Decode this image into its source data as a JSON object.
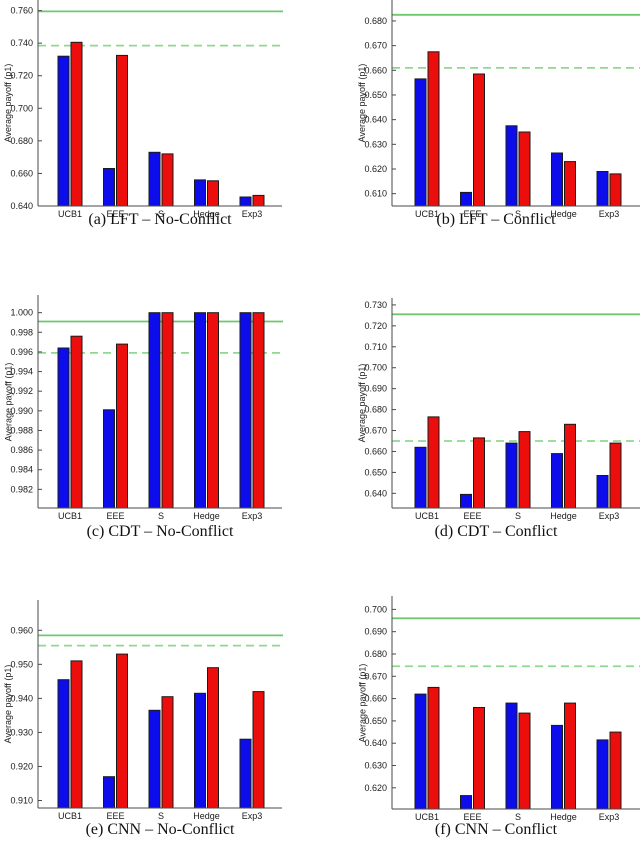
{
  "page": {
    "background": "#ffffff"
  },
  "colors": {
    "bar_blue": "#0d0deb",
    "bar_red": "#ec0d0d",
    "bar_border": "#1a1a1a",
    "ref_solid_green": "#6ec86e",
    "ref_dashed_green": "#8fd98f",
    "axis": "#4a4a4a",
    "text": "#1a1a1a"
  },
  "chart_data": [
    {
      "id": "a",
      "type": "bar",
      "caption": "(a) LFT – No-Conflict",
      "ylabel": "Average payoff (p1)",
      "categories": [
        "UCB1",
        "EEE",
        "S",
        "Hedge",
        "Exp3"
      ],
      "series": [
        {
          "name": "player-blue",
          "color": "#0d0deb",
          "values": [
            0.732,
            0.663,
            0.673,
            0.656,
            0.6455
          ]
        },
        {
          "name": "player-red",
          "color": "#ec0d0d",
          "values": [
            0.7405,
            0.7325,
            0.672,
            0.6555,
            0.6465
          ]
        }
      ],
      "ref_lines": {
        "solid": 0.7595,
        "dashed": 0.7385
      },
      "ylim": [
        0.64,
        0.7665
      ],
      "yticks": [
        0.64,
        0.66,
        0.68,
        0.7,
        0.72,
        0.74,
        0.76
      ],
      "tick_decimals": 3,
      "grid": false,
      "legend": "none"
    },
    {
      "id": "b",
      "type": "bar",
      "caption": "(b) LFT – Conflict",
      "ylabel": "Average payoff (p1)",
      "categories": [
        "UCB1",
        "EEE",
        "S",
        "Hedge",
        "Exp3"
      ],
      "series": [
        {
          "name": "player-blue",
          "color": "#0d0deb",
          "values": [
            0.6565,
            0.6105,
            0.6375,
            0.6265,
            0.619
          ]
        },
        {
          "name": "player-red",
          "color": "#ec0d0d",
          "values": [
            0.6675,
            0.6585,
            0.635,
            0.623,
            0.618
          ]
        }
      ],
      "ref_lines": {
        "solid": 0.6825,
        "dashed": 0.661
      },
      "ylim": [
        0.605,
        0.6885
      ],
      "yticks": [
        0.61,
        0.62,
        0.63,
        0.64,
        0.65,
        0.66,
        0.67,
        0.68
      ],
      "tick_decimals": 3,
      "grid": false,
      "legend": "none"
    },
    {
      "id": "c",
      "type": "bar",
      "caption": "(c) CDT – No-Conflict",
      "ylabel": "Average payoff (p1)",
      "categories": [
        "UCB1",
        "EEE",
        "S",
        "Hedge",
        "Exp3"
      ],
      "series": [
        {
          "name": "player-blue",
          "color": "#0d0deb",
          "values": [
            0.9964,
            0.9901,
            1.0,
            1.0,
            1.0
          ]
        },
        {
          "name": "player-red",
          "color": "#ec0d0d",
          "values": [
            0.9976,
            0.9968,
            1.0,
            1.0,
            1.0
          ]
        }
      ],
      "ref_lines": {
        "solid": 0.9991,
        "dashed": 0.9959
      },
      "ylim": [
        0.9801,
        1.0018
      ],
      "yticks": [
        0.982,
        0.984,
        0.986,
        0.988,
        0.99,
        0.992,
        0.994,
        0.996,
        0.998,
        1.0
      ],
      "tick_decimals": 3,
      "grid": false,
      "legend": "none"
    },
    {
      "id": "d",
      "type": "bar",
      "caption": "(d) CDT – Conflict",
      "ylabel": "Average payoff (p1)",
      "categories": [
        "UCB1",
        "EEE",
        "S",
        "Hedge",
        "Exp3"
      ],
      "series": [
        {
          "name": "player-blue",
          "color": "#0d0deb",
          "values": [
            0.662,
            0.6395,
            0.664,
            0.659,
            0.6485
          ]
        },
        {
          "name": "player-red",
          "color": "#ec0d0d",
          "values": [
            0.6765,
            0.6665,
            0.6695,
            0.673,
            0.664
          ]
        }
      ],
      "ref_lines": {
        "solid": 0.7255,
        "dashed": 0.665
      },
      "ylim": [
        0.633,
        0.7333
      ],
      "yticks": [
        0.64,
        0.65,
        0.66,
        0.67,
        0.68,
        0.69,
        0.7,
        0.71,
        0.72,
        0.73
      ],
      "tick_decimals": 3,
      "grid": false,
      "legend": "none"
    },
    {
      "id": "e",
      "type": "bar",
      "caption": "(e) CNN – No-Conflict",
      "ylabel": "Average payoff (p1)",
      "categories": [
        "UCB1",
        "EEE",
        "S",
        "Hedge",
        "Exp3"
      ],
      "series": [
        {
          "name": "player-blue",
          "color": "#0d0deb",
          "values": [
            0.9455,
            0.917,
            0.9365,
            0.9415,
            0.928
          ]
        },
        {
          "name": "player-red",
          "color": "#ec0d0d",
          "values": [
            0.951,
            0.953,
            0.9405,
            0.949,
            0.942
          ]
        }
      ],
      "ref_lines": {
        "solid": 0.9585,
        "dashed": 0.9555
      },
      "ylim": [
        0.9078,
        0.9689
      ],
      "yticks": [
        0.91,
        0.92,
        0.93,
        0.94,
        0.95,
        0.96
      ],
      "tick_decimals": 3,
      "grid": false,
      "legend": "none"
    },
    {
      "id": "f",
      "type": "bar",
      "caption": "(f) CNN – Conflict",
      "ylabel": "Average payoff (p1)",
      "categories": [
        "UCB1",
        "EEE",
        "S",
        "Hedge",
        "Exp3"
      ],
      "series": [
        {
          "name": "player-blue",
          "color": "#0d0deb",
          "values": [
            0.662,
            0.6165,
            0.658,
            0.648,
            0.6415
          ]
        },
        {
          "name": "player-red",
          "color": "#ec0d0d",
          "values": [
            0.665,
            0.656,
            0.6535,
            0.658,
            0.645
          ]
        }
      ],
      "ref_lines": {
        "solid": 0.696,
        "dashed": 0.6745
      },
      "ylim": [
        0.6105,
        0.706
      ],
      "yticks": [
        0.62,
        0.63,
        0.64,
        0.65,
        0.66,
        0.67,
        0.68,
        0.69,
        0.7
      ],
      "tick_decimals": 3,
      "grid": false,
      "legend": "none"
    }
  ]
}
